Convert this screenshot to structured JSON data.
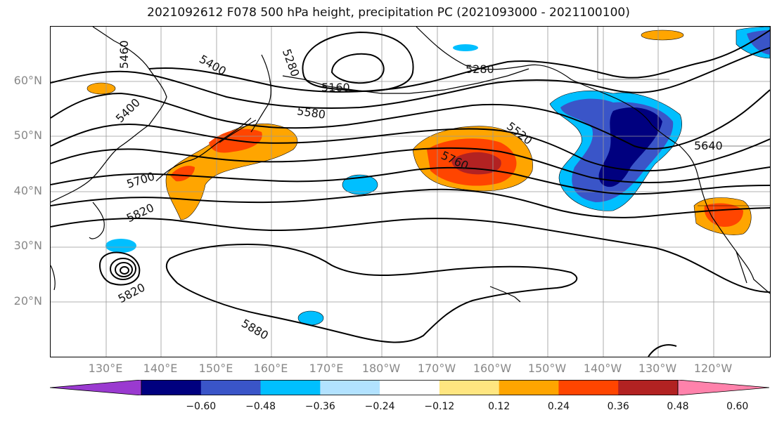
{
  "title": "2021092612 F078 500 hPa height, precipitation PC (2021093000 - 2021100100)",
  "lat_labels": [
    "60°N",
    "50°N",
    "40°N",
    "30°N",
    "20°N"
  ],
  "lon_labels": [
    "130°E",
    "140°E",
    "150°E",
    "160°E",
    "170°E",
    "180°W",
    "170°W",
    "160°W",
    "150°W",
    "140°W",
    "130°W",
    "120°W"
  ],
  "contour_labels": [
    "5460",
    "5400",
    "5400",
    "5280",
    "5280",
    "5160",
    "5580",
    "5700",
    "5820",
    "5820",
    "5520",
    "5760",
    "5640",
    "5880"
  ],
  "colorbar": {
    "ticks": [
      "−0.60",
      "−0.48",
      "−0.36",
      "−0.24",
      "−0.12",
      "0.12",
      "0.24",
      "0.36",
      "0.48",
      "0.60"
    ],
    "colors": [
      "#9a3ad0",
      "#00007f",
      "#3a55c8",
      "#00bfff",
      "#b2e2ff",
      "#ffffff",
      "#ffe680",
      "#ffa500",
      "#ff4500",
      "#b22222",
      "#ff82ab"
    ]
  },
  "colors": {
    "neg_weak": "#00bfff",
    "neg_mid": "#3a55c8",
    "neg_strong": "#00007f",
    "pos_weak": "#ffa500",
    "pos_mid": "#ff4500",
    "pos_strong": "#b22222"
  }
}
